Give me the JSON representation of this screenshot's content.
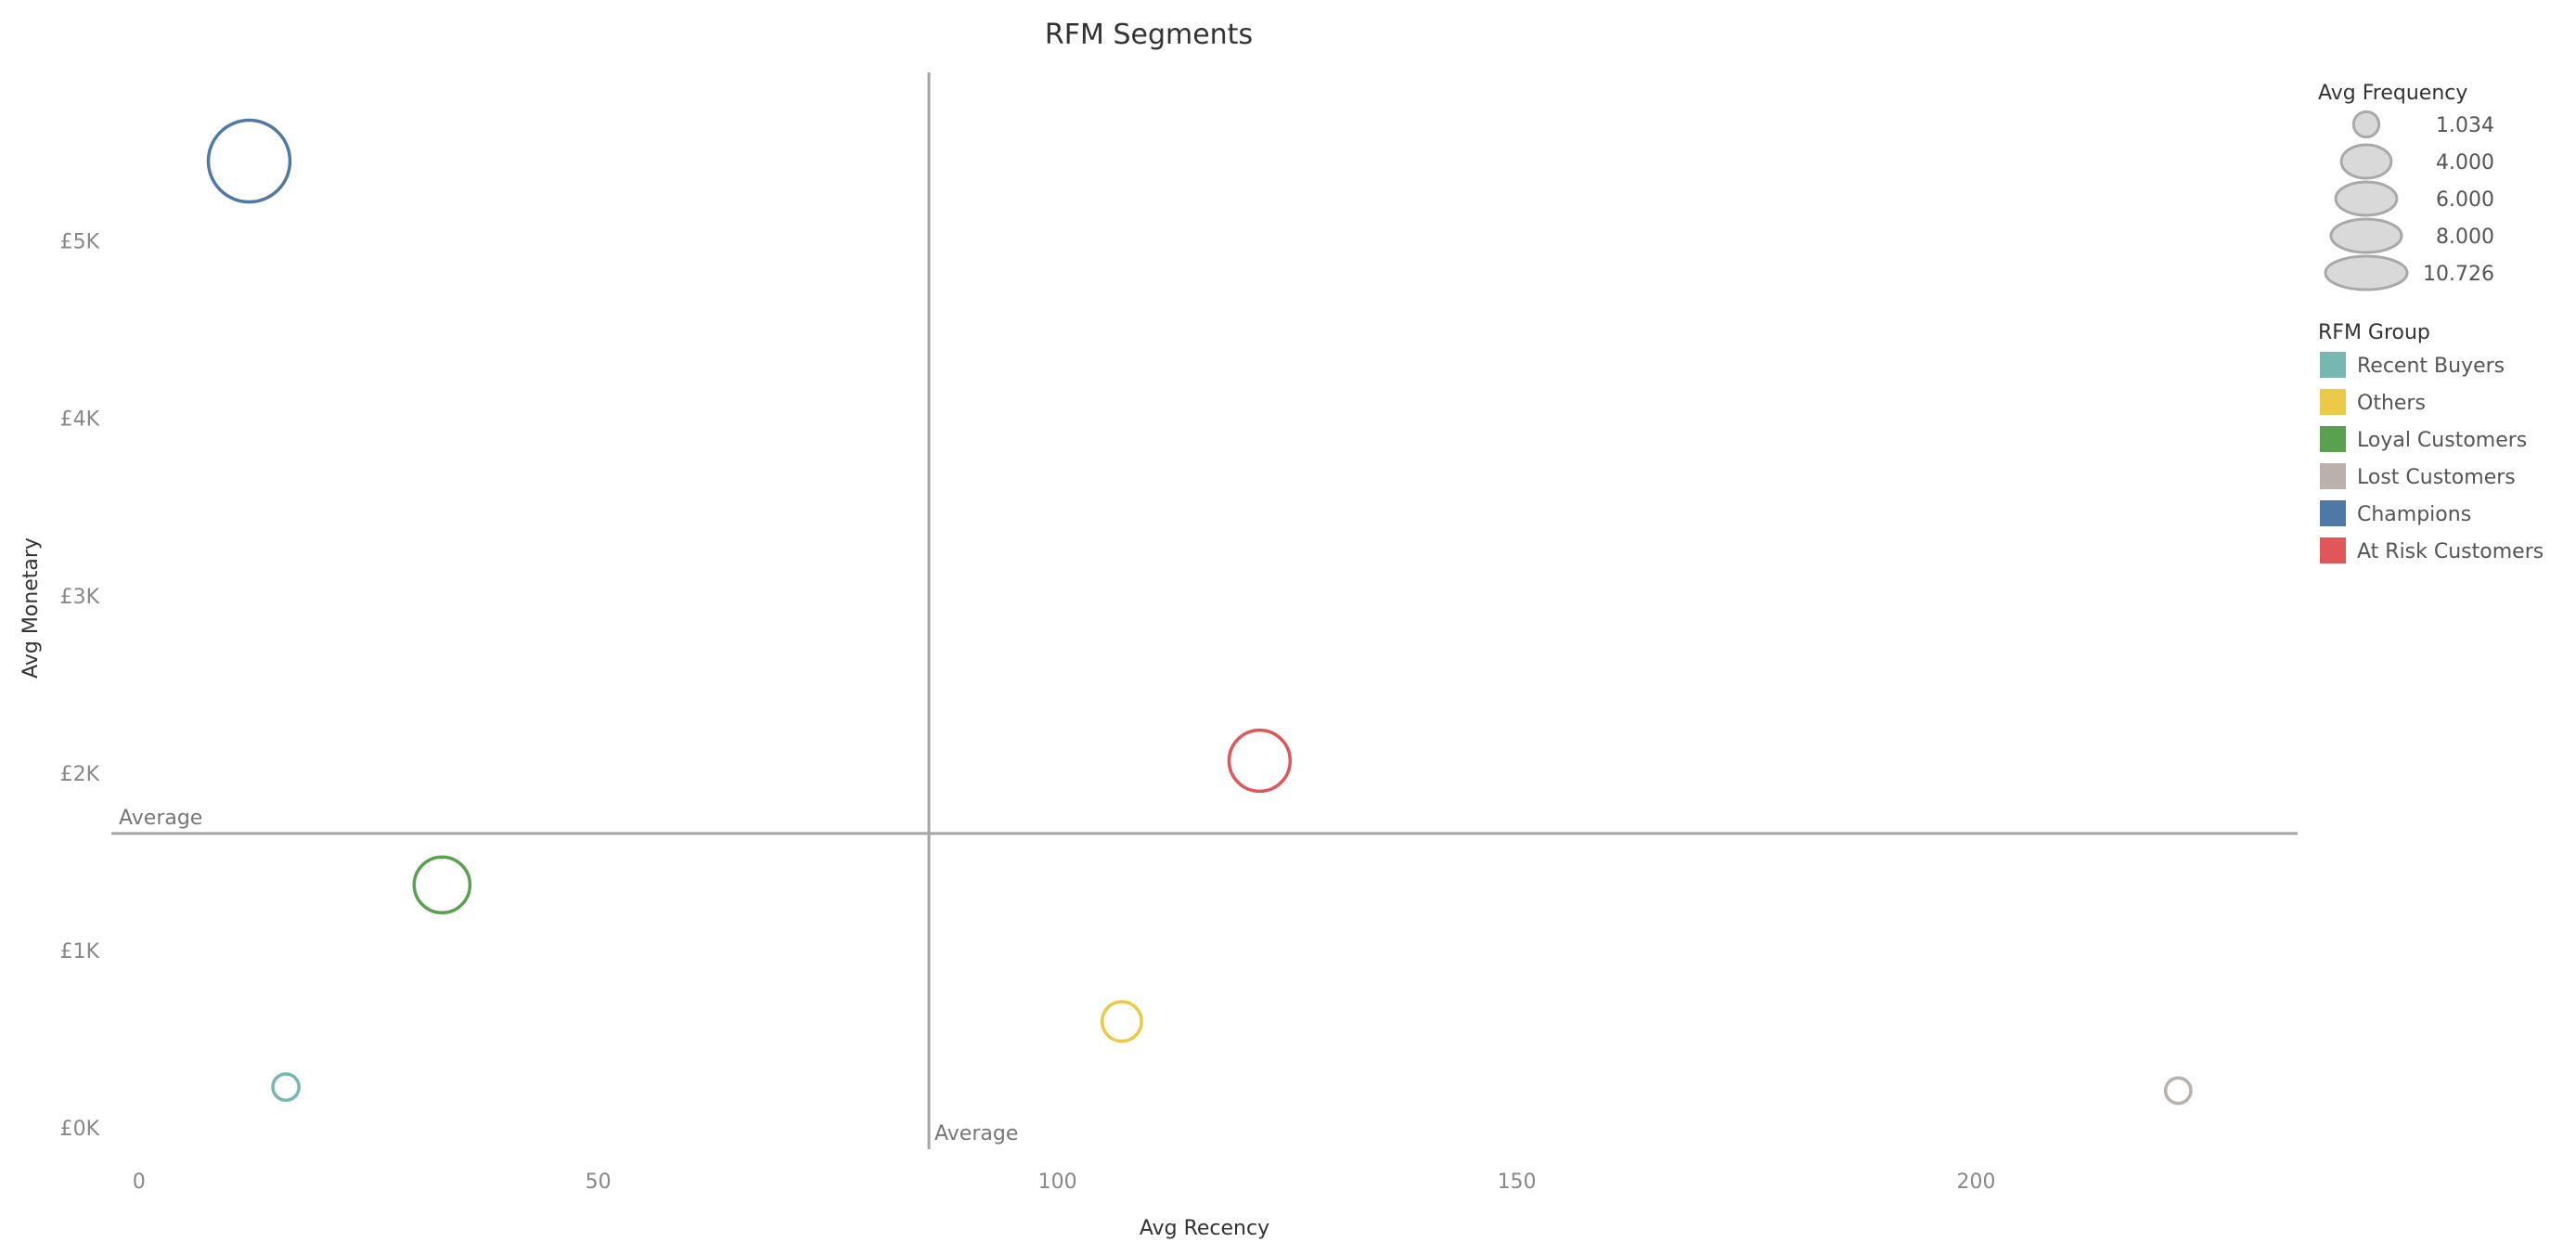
{
  "chart_data": {
    "type": "scatter",
    "title": "RFM Segments",
    "xlabel": "Avg Recency",
    "ylabel": "Avg Monetary",
    "xlim": [
      -3,
      235
    ],
    "ylim": [
      -120,
      5950
    ],
    "x_ticks": [
      {
        "value": 0,
        "label": "0"
      },
      {
        "value": 50,
        "label": "50"
      },
      {
        "value": 100,
        "label": "100"
      },
      {
        "value": 150,
        "label": "150"
      },
      {
        "value": 200,
        "label": "200"
      }
    ],
    "y_ticks": [
      {
        "value": 0,
        "label": "£0K"
      },
      {
        "value": 1000,
        "label": "£1K"
      },
      {
        "value": 2000,
        "label": "£2K"
      },
      {
        "value": 3000,
        "label": "£3K"
      },
      {
        "value": 4000,
        "label": "£4K"
      },
      {
        "value": 5000,
        "label": "£5K"
      }
    ],
    "reference_lines": {
      "x_average": 86,
      "y_average": 1660,
      "label": "Average"
    },
    "size_legend": {
      "title": "Avg Frequency",
      "entries": [
        {
          "value": 1.034,
          "label": "1.034"
        },
        {
          "value": 4.0,
          "label": "4.000"
        },
        {
          "value": 6.0,
          "label": "6.000"
        },
        {
          "value": 8.0,
          "label": "8.000"
        },
        {
          "value": 10.726,
          "label": "10.726"
        }
      ]
    },
    "color_legend": {
      "title": "RFM Group",
      "placement": "right",
      "entries": [
        {
          "label": "Recent Buyers",
          "color": "#76b7b2"
        },
        {
          "label": "Others",
          "color": "#edc948"
        },
        {
          "label": "Loyal Customers",
          "color": "#59a14f"
        },
        {
          "label": "Lost Customers",
          "color": "#bab0ac"
        },
        {
          "label": "Champions",
          "color": "#4e79a7"
        },
        {
          "label": "At Risk Customers",
          "color": "#e15759"
        }
      ]
    },
    "points": [
      {
        "group": "Recent Buyers",
        "x": 16,
        "y": 230,
        "frequency": 1.1,
        "color": "#76b7b2"
      },
      {
        "group": "Others",
        "x": 107,
        "y": 600,
        "frequency": 2.5,
        "color": "#edc948"
      },
      {
        "group": "Loyal Customers",
        "x": 33,
        "y": 1370,
        "frequency": 5.0,
        "color": "#59a14f"
      },
      {
        "group": "Lost Customers",
        "x": 222,
        "y": 210,
        "frequency": 1.034,
        "color": "#bab0ac"
      },
      {
        "group": "Champions",
        "x": 12,
        "y": 5450,
        "frequency": 10.726,
        "color": "#4e79a7"
      },
      {
        "group": "At Risk Customers",
        "x": 122,
        "y": 2070,
        "frequency": 6.0,
        "color": "#e15759"
      }
    ],
    "grid": false
  }
}
